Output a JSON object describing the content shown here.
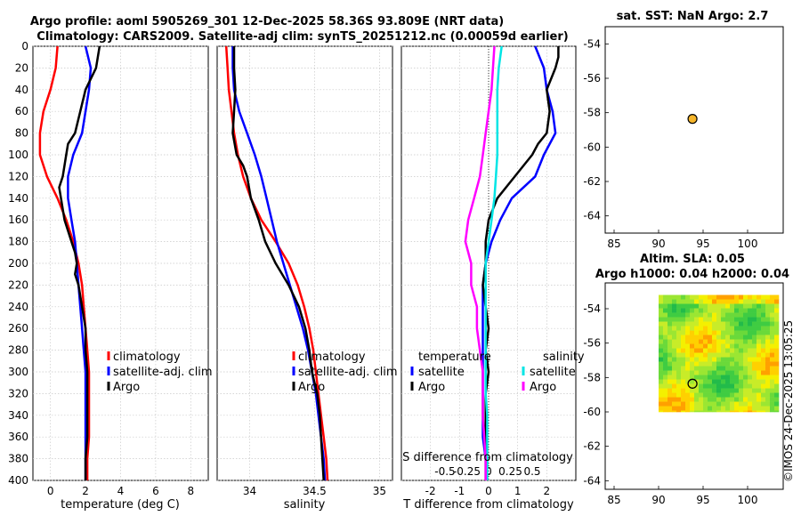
{
  "header": {
    "title_line1": "Argo profile: aoml 5905269_301 12-Dec-2025 58.36S 93.809E (NRT data)",
    "title_line2": "Climatology: CARS2009. Satellite-adj clim: synTS_20251212.nc (0.00059d earlier)"
  },
  "stamp": "©IMOS 24-Dec-2025 13:05:25",
  "colors": {
    "climatology": "#ff0000",
    "satellite": "#0000ff",
    "argo": "#000000",
    "sat_salinity": "#00e5e5",
    "argo_salinity": "#ff00ff",
    "marker": "#f5b52a"
  },
  "chart_data": [
    {
      "type": "line",
      "id": "temperature",
      "xlabel": "temperature (deg C)",
      "xlim": [
        -1,
        9
      ],
      "ylim": [
        400,
        0
      ],
      "xticks": [
        0,
        2,
        4,
        6,
        8
      ],
      "xtick_labels": [
        "0",
        "2",
        "4",
        "6",
        "8"
      ],
      "yticks": [
        0,
        20,
        40,
        60,
        80,
        100,
        120,
        140,
        160,
        180,
        200,
        220,
        240,
        260,
        280,
        300,
        320,
        340,
        360,
        380,
        400
      ],
      "ytick_labels": [
        "0",
        "20",
        "40",
        "60",
        "80",
        "100",
        "120",
        "140",
        "160",
        "180",
        "200",
        "220",
        "240",
        "260",
        "280",
        "300",
        "320",
        "340",
        "360",
        "380",
        "400"
      ],
      "grid": true,
      "legend": {
        "entries": [
          "climatology",
          "satellite-adj. clim",
          "Argo"
        ],
        "placement": "center-right"
      },
      "series": [
        {
          "name": "climatology",
          "color": "#ff0000",
          "y": [
            0,
            20,
            40,
            60,
            80,
            100,
            120,
            140,
            160,
            180,
            200,
            220,
            240,
            260,
            280,
            300,
            320,
            340,
            360,
            380,
            400
          ],
          "x": [
            0.4,
            0.3,
            0.0,
            -0.4,
            -0.6,
            -0.6,
            -0.2,
            0.4,
            0.9,
            1.3,
            1.6,
            1.8,
            1.9,
            2.0,
            2.1,
            2.2,
            2.2,
            2.2,
            2.2,
            2.1,
            2.1
          ]
        },
        {
          "name": "satellite-adj. clim",
          "color": "#0000ff",
          "y": [
            0,
            20,
            40,
            60,
            80,
            100,
            120,
            140,
            160,
            180,
            200,
            220,
            240,
            260,
            280,
            300,
            320,
            340,
            360,
            380,
            400
          ],
          "x": [
            2.0,
            2.3,
            2.2,
            2.0,
            1.8,
            1.3,
            1.0,
            1.0,
            1.2,
            1.4,
            1.5,
            1.6,
            1.7,
            1.8,
            1.9,
            2.0,
            2.0,
            2.0,
            2.0,
            2.0,
            2.0
          ]
        },
        {
          "name": "Argo",
          "color": "#000000",
          "y": [
            0,
            10,
            20,
            40,
            60,
            80,
            90,
            100,
            120,
            130,
            140,
            160,
            170,
            180,
            190,
            200,
            210,
            220,
            240,
            260,
            280,
            300,
            320,
            340,
            360,
            380,
            400
          ],
          "x": [
            2.8,
            2.7,
            2.6,
            2.0,
            1.7,
            1.4,
            1.0,
            0.9,
            0.7,
            0.5,
            0.6,
            0.8,
            1.0,
            1.2,
            1.4,
            1.5,
            1.4,
            1.6,
            1.8,
            2.0,
            2.0,
            2.1,
            2.1,
            2.1,
            2.1,
            2.0,
            2.0
          ]
        }
      ]
    },
    {
      "type": "line",
      "id": "salinity",
      "xlabel": "salinity",
      "xlim": [
        33.75,
        35.1
      ],
      "ylim": [
        400,
        0
      ],
      "xticks": [
        34,
        34.5,
        35
      ],
      "xtick_labels": [
        "34",
        "34.5",
        "35"
      ],
      "grid": true,
      "legend": {
        "entries": [
          "climatology",
          "satellite-adj. clim",
          "Argo"
        ],
        "placement": "center-right"
      },
      "series": [
        {
          "name": "climatology",
          "color": "#ff0000",
          "y": [
            0,
            20,
            40,
            60,
            80,
            100,
            120,
            140,
            160,
            180,
            200,
            220,
            240,
            260,
            280,
            300,
            320,
            340,
            360,
            380,
            400
          ],
          "x": [
            33.82,
            33.83,
            33.84,
            33.86,
            33.88,
            33.91,
            33.95,
            34.01,
            34.09,
            34.2,
            34.3,
            34.37,
            34.42,
            34.46,
            34.49,
            34.51,
            34.53,
            34.55,
            34.57,
            34.59,
            34.6
          ]
        },
        {
          "name": "satellite-adj. clim",
          "color": "#0000ff",
          "y": [
            0,
            20,
            40,
            60,
            80,
            100,
            120,
            140,
            160,
            180,
            200,
            220,
            240,
            260,
            280,
            300,
            320,
            340,
            360,
            380,
            400
          ],
          "x": [
            33.87,
            33.87,
            33.88,
            33.92,
            33.98,
            34.04,
            34.09,
            34.13,
            34.17,
            34.21,
            34.26,
            34.31,
            34.36,
            34.41,
            34.45,
            34.48,
            34.51,
            34.53,
            34.55,
            34.57,
            34.58
          ]
        },
        {
          "name": "Argo",
          "color": "#000000",
          "y": [
            0,
            20,
            40,
            60,
            80,
            100,
            110,
            120,
            140,
            160,
            180,
            200,
            220,
            240,
            260,
            280,
            300,
            320,
            340,
            360,
            380,
            400
          ],
          "x": [
            33.88,
            33.88,
            33.89,
            33.88,
            33.87,
            33.9,
            33.95,
            33.98,
            34.01,
            34.07,
            34.12,
            34.2,
            34.3,
            34.38,
            34.43,
            34.46,
            34.48,
            34.52,
            34.54,
            34.55,
            34.56,
            34.57
          ]
        }
      ]
    },
    {
      "type": "line",
      "id": "difference",
      "xlabel": "T difference from climatology",
      "xlabel_top": "S difference from climatology",
      "xlim": [
        -3.0,
        3.0
      ],
      "ylim": [
        400,
        0
      ],
      "xticks": [
        -2,
        -1,
        0,
        1,
        2
      ],
      "xtick_labels": [
        "-2",
        "-1",
        "0",
        "1",
        "2"
      ],
      "s_ticks": [
        -1.5,
        -0.75,
        0,
        0.75,
        1.5
      ],
      "s_tick_labels": [
        "-0.5",
        "-0.25",
        "0",
        "0.25",
        "0.5"
      ],
      "grid": true,
      "legend": {
        "group1_title": "temperature",
        "group2_title": "salinity",
        "entries": [
          "satellite",
          "Argo",
          "satellite",
          "Argo"
        ],
        "placement": "center"
      },
      "series": [
        {
          "name": "temperature satellite",
          "color": "#0000ff",
          "y": [
            0,
            20,
            40,
            60,
            80,
            100,
            120,
            140,
            160,
            180,
            200,
            220,
            240,
            260,
            280,
            300,
            320,
            340,
            360,
            380,
            400
          ],
          "x": [
            1.6,
            1.9,
            2.0,
            2.2,
            2.3,
            1.9,
            1.6,
            0.8,
            0.4,
            0.1,
            -0.1,
            -0.2,
            -0.2,
            -0.2,
            -0.2,
            -0.2,
            -0.2,
            -0.2,
            -0.2,
            -0.1,
            -0.1
          ]
        },
        {
          "name": "temperature Argo",
          "color": "#000000",
          "y": [
            0,
            10,
            20,
            40,
            60,
            80,
            90,
            100,
            120,
            140,
            160,
            180,
            200,
            220,
            240,
            260,
            280,
            300,
            320,
            340,
            360,
            380,
            400
          ],
          "x": [
            2.4,
            2.4,
            2.3,
            2.0,
            2.1,
            2.0,
            1.7,
            1.5,
            0.9,
            0.3,
            0.0,
            -0.1,
            -0.1,
            -0.2,
            -0.1,
            0.0,
            -0.1,
            0.0,
            -0.1,
            -0.1,
            -0.1,
            -0.1,
            -0.1
          ]
        },
        {
          "name": "salinity satellite",
          "color": "#00e5e5",
          "y": [
            0,
            20,
            40,
            60,
            80,
            100,
            120,
            140,
            160,
            180,
            200,
            220,
            240,
            260,
            280,
            300,
            320,
            340,
            360,
            380,
            400
          ],
          "x": [
            0.45,
            0.35,
            0.3,
            0.3,
            0.3,
            0.3,
            0.25,
            0.2,
            0.1,
            0.0,
            -0.1,
            -0.1,
            -0.1,
            -0.1,
            -0.1,
            -0.1,
            -0.1,
            -0.05,
            -0.05,
            -0.05,
            -0.05
          ]
        },
        {
          "name": "salinity Argo",
          "color": "#ff00ff",
          "y": [
            0,
            20,
            40,
            60,
            80,
            100,
            120,
            140,
            160,
            180,
            200,
            220,
            240,
            260,
            280,
            300,
            320,
            340,
            360,
            380,
            400
          ],
          "x": [
            0.2,
            0.15,
            0.1,
            0.0,
            -0.1,
            -0.2,
            -0.3,
            -0.5,
            -0.7,
            -0.8,
            -0.6,
            -0.6,
            -0.4,
            -0.4,
            -0.3,
            -0.2,
            -0.2,
            -0.2,
            -0.15,
            -0.1,
            -0.1
          ]
        }
      ]
    },
    {
      "type": "scatter",
      "id": "sat_sst_map",
      "title": "sat. SST: NaN Argo: 2.7",
      "xlim": [
        84,
        104
      ],
      "ylim": [
        -65,
        -53
      ],
      "xticks": [
        85,
        90,
        95,
        100
      ],
      "xtick_labels": [
        "85",
        "90",
        "95",
        "100"
      ],
      "yticks": [
        -54,
        -56,
        -58,
        -60,
        -62,
        -64
      ],
      "ytick_labels": [
        "-54",
        "-56",
        "-58",
        "-60",
        "-62",
        "-64"
      ],
      "points": [
        {
          "lon": 93.809,
          "lat": -58.36
        }
      ]
    },
    {
      "type": "heatmap",
      "id": "altim_map",
      "title_line1": "Altim. SLA: 0.05",
      "title_line2": "Argo h1000: 0.04 h2000: 0.04",
      "xlim": [
        84,
        104
      ],
      "ylim": [
        -64.5,
        -52.5
      ],
      "data_extent": {
        "lon": [
          90,
          103.5
        ],
        "lat": [
          -60,
          -53.2
        ]
      },
      "xticks": [
        85,
        90,
        95,
        100
      ],
      "xtick_labels": [
        "85",
        "90",
        "95",
        "100"
      ],
      "yticks": [
        -54,
        -56,
        -58,
        -60,
        -62,
        -64
      ],
      "ytick_labels": [
        "-54",
        "-56",
        "-58",
        "-60",
        "-62",
        "-64"
      ],
      "points": [
        {
          "lon": 93.809,
          "lat": -58.36
        }
      ]
    }
  ]
}
